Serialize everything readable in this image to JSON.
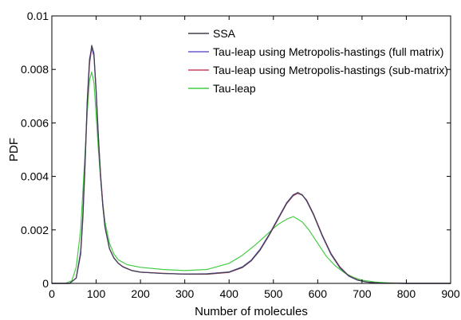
{
  "chart_data": {
    "type": "line",
    "title": "",
    "xlabel": "Number of molecules",
    "ylabel": "PDF",
    "xlim": [
      0,
      900
    ],
    "ylim": [
      0,
      0.01
    ],
    "xticks": [
      0,
      100,
      200,
      300,
      400,
      500,
      600,
      700,
      800,
      900
    ],
    "yticks": [
      0,
      0.002,
      0.004,
      0.006,
      0.008,
      0.01
    ],
    "xtick_labels": [
      "0",
      "100",
      "200",
      "300",
      "400",
      "500",
      "600",
      "700",
      "800",
      "900"
    ],
    "ytick_labels": [
      "0",
      "0.002",
      "0.004",
      "0.006",
      "0.008",
      "0.01"
    ],
    "grid": false,
    "legend_position": "top-right",
    "series": [
      {
        "name": "SSA",
        "color": "#404050",
        "x": [
          0,
          40,
          55,
          65,
          70,
          75,
          80,
          85,
          90,
          95,
          100,
          105,
          110,
          115,
          120,
          130,
          140,
          150,
          160,
          180,
          200,
          250,
          300,
          350,
          400,
          430,
          450,
          470,
          490,
          510,
          530,
          545,
          555,
          565,
          575,
          590,
          610,
          630,
          650,
          670,
          690,
          710,
          740,
          800,
          900
        ],
        "y": [
          0,
          0,
          0.0002,
          0.0011,
          0.0025,
          0.0045,
          0.0068,
          0.0083,
          0.0089,
          0.0086,
          0.0072,
          0.0055,
          0.004,
          0.0029,
          0.0021,
          0.0013,
          0.00095,
          0.00075,
          0.00062,
          0.00048,
          0.00042,
          0.00037,
          0.00035,
          0.00035,
          0.00042,
          0.0006,
          0.00085,
          0.00125,
          0.0018,
          0.0024,
          0.003,
          0.0033,
          0.0034,
          0.0033,
          0.0031,
          0.0026,
          0.0018,
          0.0011,
          0.0006,
          0.00028,
          0.00012,
          5e-05,
          1e-05,
          0,
          0
        ]
      },
      {
        "name": "Tau-leap using Metropolis-hastings (full matrix)",
        "color": "#6a5acd",
        "x": [
          0,
          40,
          55,
          65,
          70,
          75,
          80,
          85,
          90,
          95,
          100,
          105,
          110,
          115,
          120,
          130,
          140,
          150,
          160,
          180,
          200,
          250,
          300,
          350,
          400,
          430,
          450,
          470,
          490,
          510,
          530,
          545,
          555,
          565,
          575,
          590,
          610,
          630,
          650,
          670,
          690,
          710,
          740,
          800,
          900
        ],
        "y": [
          0,
          0,
          0.0002,
          0.0012,
          0.0026,
          0.0046,
          0.0069,
          0.0084,
          0.0088,
          0.0085,
          0.0071,
          0.0054,
          0.004,
          0.0029,
          0.0021,
          0.0013,
          0.00095,
          0.00075,
          0.00062,
          0.00048,
          0.00042,
          0.00037,
          0.00035,
          0.00036,
          0.00043,
          0.00062,
          0.00087,
          0.00128,
          0.00182,
          0.00242,
          0.00302,
          0.00332,
          0.00338,
          0.00332,
          0.00308,
          0.00258,
          0.00178,
          0.00108,
          0.00058,
          0.00027,
          0.00012,
          5e-05,
          1e-05,
          0,
          0
        ]
      },
      {
        "name": "Tau-leap using Metropolis-hastings (sub-matrix)",
        "color": "#c8455a",
        "x": [
          0,
          40,
          55,
          65,
          70,
          75,
          80,
          85,
          90,
          95,
          100,
          105,
          110,
          115,
          120,
          130,
          140,
          150,
          160,
          180,
          200,
          250,
          300,
          350,
          400,
          430,
          450,
          470,
          490,
          510,
          530,
          545,
          555,
          565,
          575,
          590,
          610,
          630,
          650,
          670,
          690,
          710,
          740,
          800,
          900
        ],
        "y": [
          0,
          0,
          0.0002,
          0.0011,
          0.0024,
          0.0044,
          0.0067,
          0.0082,
          0.0088,
          0.0085,
          0.0072,
          0.0055,
          0.0041,
          0.003,
          0.0021,
          0.0013,
          0.00096,
          0.00076,
          0.00063,
          0.00049,
          0.00042,
          0.00038,
          0.00034,
          0.00034,
          0.00041,
          0.00059,
          0.00084,
          0.00124,
          0.00178,
          0.00238,
          0.00298,
          0.00328,
          0.00336,
          0.0033,
          0.00312,
          0.00262,
          0.00182,
          0.00112,
          0.00062,
          0.00029,
          0.00013,
          5e-05,
          1e-05,
          0,
          0
        ]
      },
      {
        "name": "Tau-leap",
        "color": "#44cc44",
        "x": [
          0,
          30,
          45,
          55,
          65,
          72,
          80,
          85,
          90,
          95,
          100,
          105,
          110,
          115,
          120,
          130,
          140,
          150,
          170,
          200,
          250,
          300,
          350,
          400,
          430,
          460,
          490,
          510,
          530,
          545,
          555,
          565,
          580,
          600,
          620,
          640,
          660,
          680,
          700,
          730,
          760,
          800,
          900
        ],
        "y": [
          0,
          0,
          0.0001,
          0.0006,
          0.002,
          0.004,
          0.0064,
          0.0076,
          0.0079,
          0.0075,
          0.0063,
          0.005,
          0.0039,
          0.003,
          0.0023,
          0.0015,
          0.0011,
          0.00088,
          0.0007,
          0.0006,
          0.00052,
          0.00048,
          0.00052,
          0.00075,
          0.00105,
          0.00145,
          0.0019,
          0.0022,
          0.0024,
          0.0025,
          0.0024,
          0.0023,
          0.002,
          0.0015,
          0.001,
          0.00065,
          0.0004,
          0.00023,
          0.00012,
          5e-05,
          2e-05,
          0,
          0
        ]
      }
    ]
  }
}
